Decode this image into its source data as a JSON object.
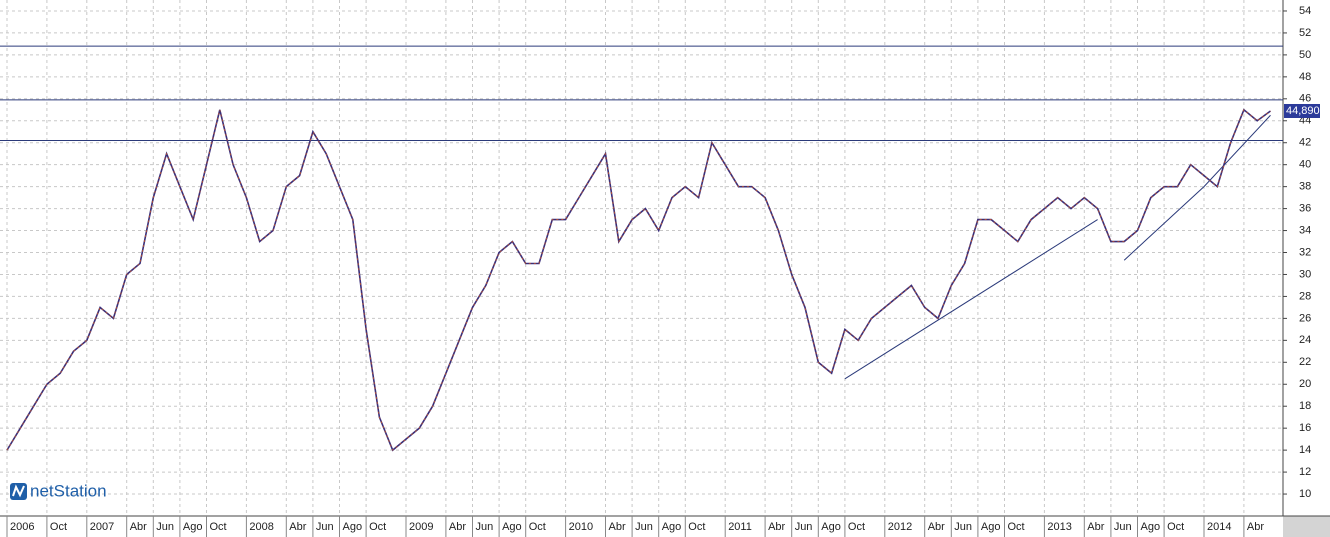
{
  "chart_data": {
    "type": "line",
    "logo": "netStation",
    "categories": [
      "2006",
      null,
      null,
      "Oct",
      null,
      null,
      "2007",
      null,
      null,
      "Abr",
      null,
      "Jun",
      null,
      "Ago",
      null,
      "Oct",
      null,
      null,
      "2008",
      null,
      null,
      "Abr",
      null,
      "Jun",
      null,
      "Ago",
      null,
      "Oct",
      null,
      null,
      "2009",
      null,
      null,
      "Abr",
      null,
      "Jun",
      null,
      "Ago",
      null,
      "Oct",
      null,
      null,
      "2010",
      null,
      null,
      "Abr",
      null,
      "Jun",
      null,
      "Ago",
      null,
      "Oct",
      null,
      null,
      "2011",
      null,
      null,
      "Abr",
      null,
      "Jun",
      null,
      "Ago",
      null,
      "Oct",
      null,
      null,
      "2012",
      null,
      null,
      "Abr",
      null,
      "Jun",
      null,
      "Ago",
      null,
      "Oct",
      null,
      null,
      "2013",
      null,
      null,
      "Abr",
      null,
      "Jun",
      null,
      "Ago",
      null,
      "Oct",
      null,
      null,
      "2014",
      null,
      null,
      "Abr",
      null,
      null
    ],
    "series": [
      {
        "color": "#3a2f7a",
        "values": [
          14,
          16,
          18,
          20,
          21,
          23,
          24,
          27,
          26,
          30,
          31,
          37,
          41,
          38,
          35,
          40,
          45,
          40,
          37,
          33,
          34,
          38,
          39,
          43,
          41,
          38,
          35,
          25,
          17,
          14,
          15,
          16,
          18,
          21,
          24,
          27,
          29,
          32,
          33,
          31,
          31,
          35,
          35,
          37,
          39,
          41,
          33,
          35,
          36,
          34,
          37,
          38,
          37,
          42,
          40,
          38,
          38,
          37,
          34,
          30,
          27,
          22,
          21,
          25,
          24,
          26,
          27,
          28,
          29,
          27,
          26,
          29,
          31,
          35,
          35,
          34,
          33,
          35,
          36,
          37,
          36,
          37,
          36,
          33,
          33,
          34,
          37,
          38,
          38,
          40,
          39,
          38,
          42,
          45,
          44,
          44.89
        ]
      }
    ],
    "last_price": {
      "value": 44.89,
      "label": "44,890"
    },
    "hlines": [
      50.8,
      45.9,
      42.2
    ],
    "trendlines": [
      {
        "x": [
          63,
          82
        ],
        "y": [
          20.5,
          35
        ]
      },
      {
        "x": [
          84,
          90,
          95
        ],
        "y": [
          31.3,
          38,
          44.5
        ]
      }
    ],
    "ylim": [
      8,
      55
    ],
    "yticks": [
      10,
      12,
      14,
      16,
      18,
      20,
      22,
      24,
      26,
      28,
      30,
      32,
      34,
      36,
      38,
      40,
      42,
      44,
      46,
      48,
      50,
      52,
      54
    ],
    "grid": true
  }
}
